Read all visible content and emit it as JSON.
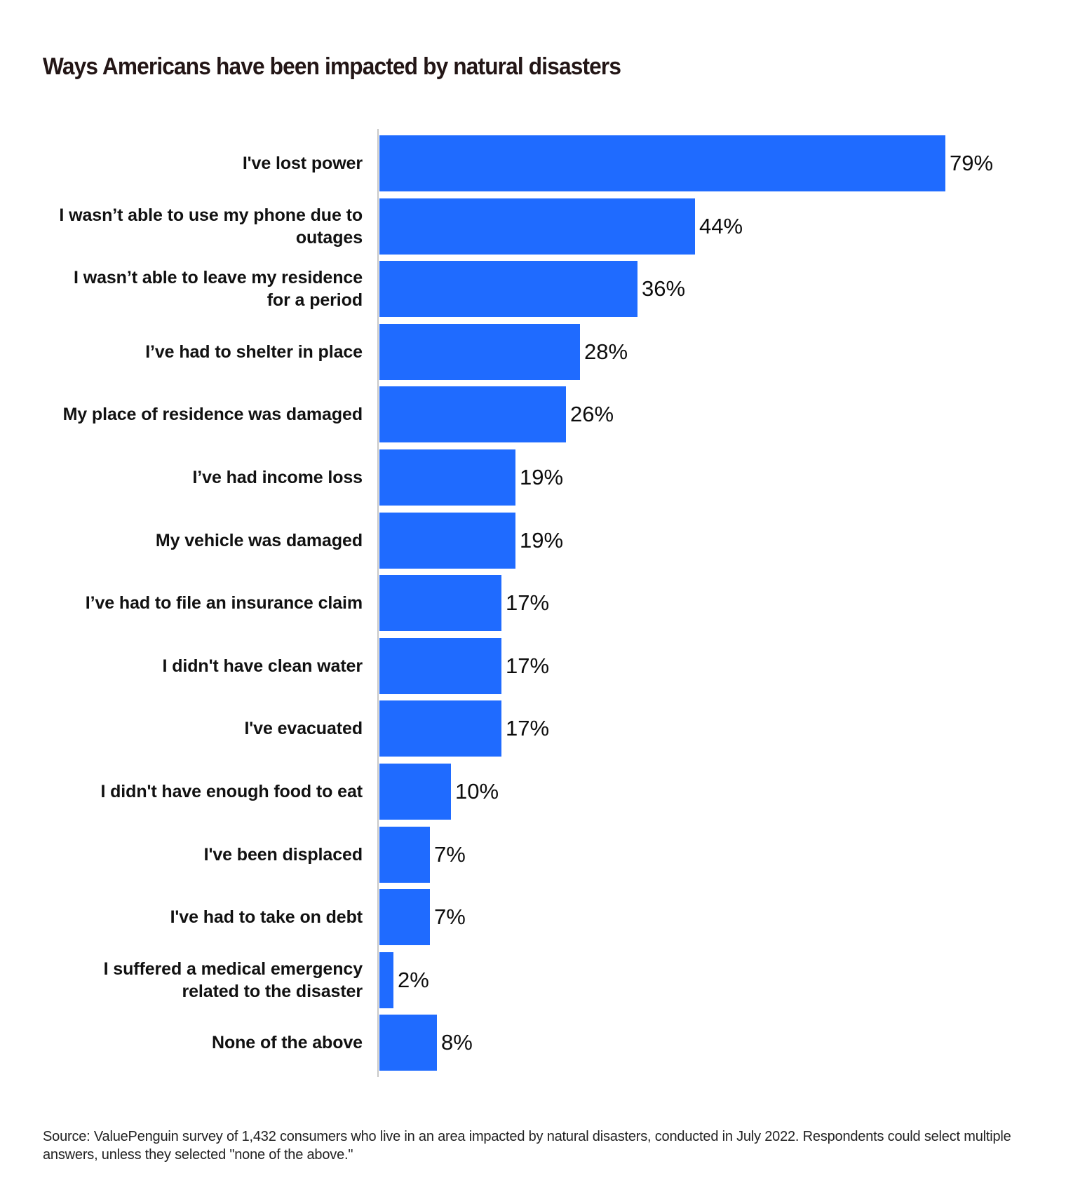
{
  "title": "Ways Americans have been impacted by natural disasters",
  "source": "Source: ValuePenguin survey of 1,432 consumers who live in an area impacted by natural disasters, conducted in July 2022. Respondents could select multiple answers, unless they selected \"none of the above.\"",
  "colors": {
    "bar": "#1F6BFF",
    "axis": "#C8C8C8",
    "title": "#231616"
  },
  "chart_data": {
    "type": "bar",
    "orientation": "horizontal",
    "title": "Ways Americans have been impacted by natural disasters",
    "xlabel": "",
    "ylabel": "",
    "xlim": [
      0,
      80
    ],
    "grid": false,
    "legend": null,
    "categories": [
      "I've lost power",
      "I wasn’t able to use my phone due to outages",
      "I wasn’t able to leave my residence for a period",
      "I’ve had to shelter in place",
      "My place of residence was damaged",
      "I’ve had income loss",
      "My vehicle was damaged",
      "I’ve had to file an insurance claim",
      "I didn't have clean water",
      "I've evacuated",
      "I didn't have enough food to eat",
      "I've been displaced",
      "I've had to take on debt",
      "I suffered a medical emergency related to the disaster",
      "None of the above"
    ],
    "values": [
      79,
      44,
      36,
      28,
      26,
      19,
      19,
      17,
      17,
      17,
      10,
      7,
      7,
      2,
      8
    ],
    "value_labels": [
      "79%",
      "44%",
      "36%",
      "28%",
      "26%",
      "19%",
      "19%",
      "17%",
      "17%",
      "17%",
      "10%",
      "7%",
      "7%",
      "2%",
      "8%"
    ],
    "annotations": [
      "Source: ValuePenguin survey of 1,432 consumers who live in an area impacted by natural disasters, conducted in July 2022. Respondents could select multiple answers, unless they selected \"none of the above.\""
    ]
  },
  "rows": [
    {
      "lines": [
        "I've lost power"
      ],
      "value": 79,
      "value_label": "79%"
    },
    {
      "lines": [
        "I wasn’t able to use my phone due to",
        "outages"
      ],
      "value": 44,
      "value_label": "44%"
    },
    {
      "lines": [
        "I wasn’t able to leave my residence",
        "for a period"
      ],
      "value": 36,
      "value_label": "36%"
    },
    {
      "lines": [
        "I’ve had to shelter in place"
      ],
      "value": 28,
      "value_label": "28%"
    },
    {
      "lines": [
        "My place of residence was damaged"
      ],
      "value": 26,
      "value_label": "26%"
    },
    {
      "lines": [
        "I’ve had income loss"
      ],
      "value": 19,
      "value_label": "19%"
    },
    {
      "lines": [
        "My vehicle was damaged"
      ],
      "value": 19,
      "value_label": "19%"
    },
    {
      "lines": [
        "I’ve had to file an insurance claim"
      ],
      "value": 17,
      "value_label": "17%"
    },
    {
      "lines": [
        "I didn't have clean water"
      ],
      "value": 17,
      "value_label": "17%"
    },
    {
      "lines": [
        "I've evacuated"
      ],
      "value": 17,
      "value_label": "17%"
    },
    {
      "lines": [
        "I didn't have enough food to eat"
      ],
      "value": 10,
      "value_label": "10%"
    },
    {
      "lines": [
        "I've been displaced"
      ],
      "value": 7,
      "value_label": "7%"
    },
    {
      "lines": [
        "I've had to take on debt"
      ],
      "value": 7,
      "value_label": "7%"
    },
    {
      "lines": [
        "I suffered a medical emergency",
        "related to the disaster"
      ],
      "value": 2,
      "value_label": "2%"
    },
    {
      "lines": [
        "None of the above"
      ],
      "value": 8,
      "value_label": "8%"
    }
  ]
}
